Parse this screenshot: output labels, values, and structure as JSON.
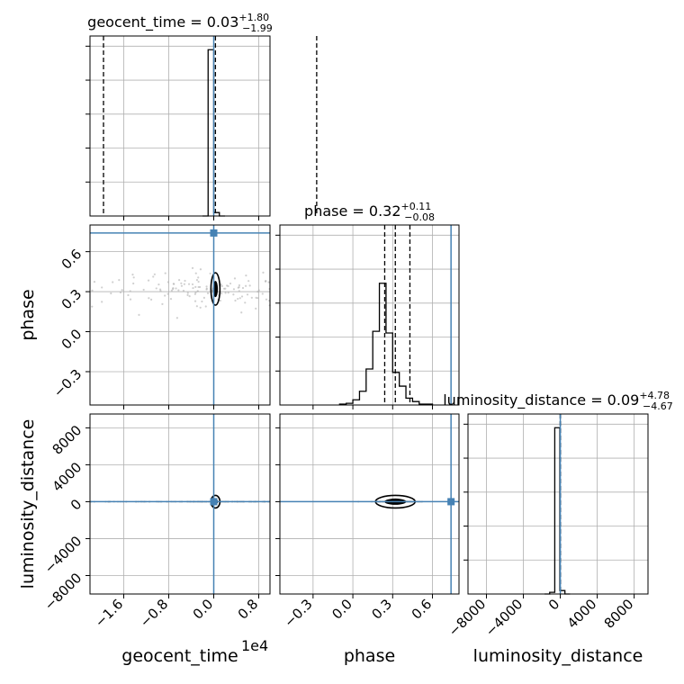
{
  "colors": {
    "truth": "#4682b4",
    "hist": "#000000",
    "grid": "#b0b0b0",
    "samples": "#b0b0b0",
    "contour": "#000000"
  },
  "exponent_label": "1e4",
  "chart_data": {
    "type": "corner",
    "grid": true,
    "parameters": [
      {
        "name": "geocent_time",
        "axis_label": "geocent_time",
        "unit_scale": 10000,
        "range": [
          -2.2,
          1.0
        ],
        "ticks": [
          -1.6,
          -0.8,
          0.0,
          0.8
        ],
        "tick_labels": [
          "−1.6",
          "−0.8",
          "0.0",
          "0.8"
        ],
        "truth": 0.0,
        "median": 0.03,
        "quantiles": [
          -1.96,
          0.03,
          1.83
        ],
        "title_main": "geocent_time = 0.03",
        "title_plus": "+1.80",
        "title_minus": "−1.99",
        "hist_edges": [
          -0.2,
          -0.1,
          0.0,
          0.1,
          0.2
        ],
        "hist_values": [
          0,
          0.97,
          0.02,
          0
        ]
      },
      {
        "name": "phase",
        "axis_label": "phase",
        "range": [
          -0.55,
          0.8
        ],
        "ticks": [
          -0.3,
          0.0,
          0.3,
          0.6
        ],
        "tick_labels": [
          "−0.3",
          "0.0",
          "0.3",
          "0.6"
        ],
        "truth": 0.74,
        "median": 0.32,
        "quantiles": [
          0.24,
          0.32,
          0.43
        ],
        "title_main": "phase = 0.32",
        "title_plus": "+0.11",
        "title_minus": "−0.08",
        "hist_edges": [
          -0.1,
          -0.05,
          0.0,
          0.05,
          0.1,
          0.15,
          0.2,
          0.25,
          0.3,
          0.35,
          0.4,
          0.45,
          0.5,
          0.55,
          0.6
        ],
        "hist_values": [
          0.005,
          0.01,
          0.03,
          0.08,
          0.21,
          0.43,
          0.71,
          0.42,
          0.19,
          0.11,
          0.04,
          0.02,
          0.005,
          0.005
        ]
      },
      {
        "name": "luminosity_distance",
        "axis_label": "luminosity_distance",
        "range": [
          -10000,
          9500
        ],
        "ticks": [
          -8000,
          -4000,
          0,
          4000,
          8000
        ],
        "tick_labels": [
          "−8000",
          "−4000",
          "0",
          "4000",
          "8000"
        ],
        "truth": 0,
        "median": 0.09,
        "quantiles": [
          -4.58,
          0.09,
          4.87
        ],
        "title_main": "luminosity_distance = 0.09",
        "title_plus": "+4.78",
        "title_minus": "−4.67",
        "hist_edges": [
          -1700,
          -1150,
          -600,
          -50,
          500,
          1050
        ],
        "hist_values": [
          0,
          0.01,
          0.97,
          0.02,
          0
        ]
      }
    ],
    "y_axes": {
      "phase": {
        "ticks": [
          -0.3,
          0.0,
          0.3,
          0.6
        ],
        "tick_labels": [
          "−0.3",
          "0.0",
          "0.3",
          "0.6"
        ]
      },
      "luminosity_distance": {
        "ticks": [
          -8000,
          -4000,
          0,
          4000,
          8000
        ],
        "tick_labels": [
          "−8000",
          "−4000",
          "0",
          "4000",
          "8000"
        ]
      }
    }
  }
}
